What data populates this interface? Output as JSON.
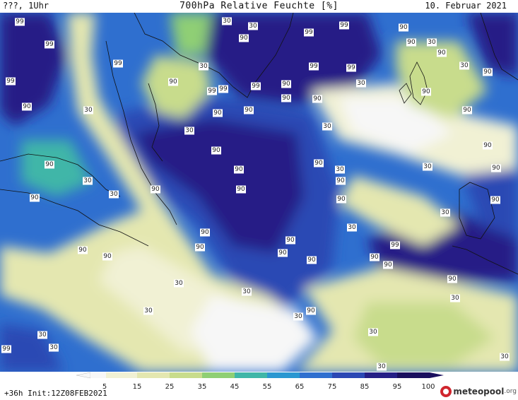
{
  "header": {
    "title": "700hPa Relative Feuchte [%]",
    "left": "???, 1Uhr",
    "right": "10. Februar 2021"
  },
  "footer": {
    "init": "+36h Init:12Z08FEB2021",
    "logo_name": "meteopool",
    "logo_tld": ".org"
  },
  "legend": {
    "ticks": [
      "5",
      "15",
      "25",
      "35",
      "45",
      "55",
      "65",
      "75",
      "85",
      "95",
      "100"
    ],
    "colors": [
      "#f7f7f7",
      "#f1f1d4",
      "#e4e7b0",
      "#c8dc8c",
      "#8fcf74",
      "#3fb6a8",
      "#2a97d1",
      "#2f6fcf",
      "#2b48b4",
      "#251f86",
      "#1a0f5e"
    ]
  },
  "map_labels": [
    {
      "text": "99"
    },
    {
      "text": "99"
    },
    {
      "text": "99"
    },
    {
      "text": "90"
    },
    {
      "text": "30"
    },
    {
      "text": "99"
    },
    {
      "text": "90"
    },
    {
      "text": "30"
    },
    {
      "text": "90"
    },
    {
      "text": "30"
    },
    {
      "text": "99"
    },
    {
      "text": "99"
    },
    {
      "text": "99"
    },
    {
      "text": "90"
    },
    {
      "text": "90"
    },
    {
      "text": "99"
    },
    {
      "text": "90"
    },
    {
      "text": "30"
    },
    {
      "text": "99"
    },
    {
      "text": "90"
    },
    {
      "text": "99"
    },
    {
      "text": "90"
    },
    {
      "text": "30"
    },
    {
      "text": "90"
    },
    {
      "text": "30"
    },
    {
      "text": "90"
    },
    {
      "text": "90"
    },
    {
      "text": "30"
    },
    {
      "text": "90"
    },
    {
      "text": "90"
    },
    {
      "text": "90"
    },
    {
      "text": "30"
    },
    {
      "text": "90"
    },
    {
      "text": "90"
    },
    {
      "text": "90"
    },
    {
      "text": "30"
    },
    {
      "text": "90"
    },
    {
      "text": "30"
    },
    {
      "text": "90"
    },
    {
      "text": "90"
    },
    {
      "text": "90"
    },
    {
      "text": "90"
    },
    {
      "text": "30"
    },
    {
      "text": "90"
    },
    {
      "text": "90"
    },
    {
      "text": "90"
    },
    {
      "text": "30"
    },
    {
      "text": "99"
    },
    {
      "text": "90"
    },
    {
      "text": "90"
    },
    {
      "text": "30"
    },
    {
      "text": "90"
    },
    {
      "text": "30"
    },
    {
      "text": "30"
    },
    {
      "text": "90"
    },
    {
      "text": "30"
    },
    {
      "text": "90"
    },
    {
      "text": "30"
    },
    {
      "text": "30"
    },
    {
      "text": "30"
    },
    {
      "text": "99"
    },
    {
      "text": "30"
    },
    {
      "text": "30"
    },
    {
      "text": "30"
    },
    {
      "text": "90"
    },
    {
      "text": "90"
    },
    {
      "text": "90"
    },
    {
      "text": "30"
    },
    {
      "text": "90"
    },
    {
      "text": "30"
    },
    {
      "text": "90"
    },
    {
      "text": "90"
    },
    {
      "text": "90"
    },
    {
      "text": "30"
    },
    {
      "text": "99"
    }
  ]
}
